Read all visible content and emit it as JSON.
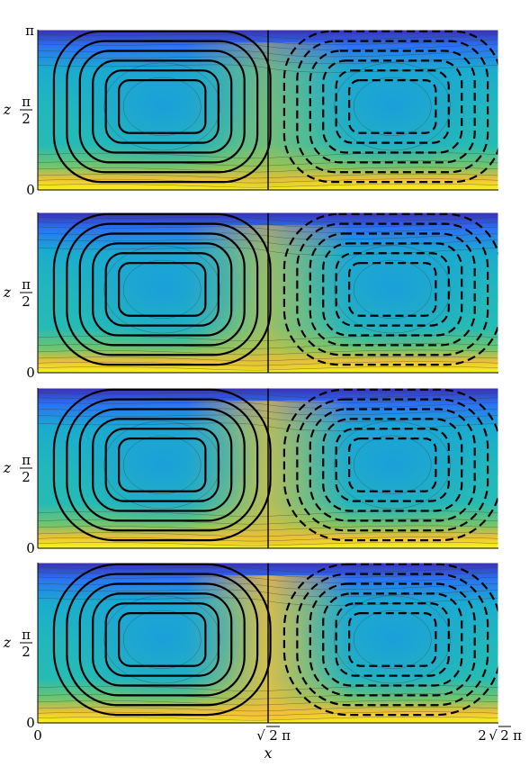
{
  "chart_data": {
    "type": "heatmap",
    "description_free": true,
    "panels": [
      {
        "id": "panel-1",
        "zlabel": "z",
        "z_ticks": [
          "0",
          "π/2",
          "π"
        ],
        "show_top_tick": true,
        "flow_strength": 0.55,
        "warm_center": 0.55
      },
      {
        "id": "panel-2",
        "zlabel": "z",
        "z_ticks": [
          "0",
          "π/2"
        ],
        "show_top_tick": false,
        "flow_strength": 0.75,
        "warm_center": 0.75
      },
      {
        "id": "panel-3",
        "zlabel": "z",
        "z_ticks": [
          "0",
          "π/2"
        ],
        "show_top_tick": false,
        "flow_strength": 0.9,
        "warm_center": 0.88
      },
      {
        "id": "panel-4",
        "zlabel": "z",
        "z_ticks": [
          "0",
          "π/2"
        ],
        "show_top_tick": false,
        "flow_strength": 1.0,
        "warm_center": 1.0
      }
    ],
    "x_ticks": [
      "0",
      "√2π",
      "2√2π"
    ],
    "xlabel": "x",
    "x_range": [
      0,
      8.8858
    ],
    "z_range": [
      0,
      3.14159
    ],
    "colormap": [
      "#3e26a8",
      "#2c6df6",
      "#16a7d8",
      "#2ec6a2",
      "#b6c333",
      "#f9bf38",
      "#f9f914"
    ],
    "streamline_color": "#000000",
    "negative_streamline_style": "dashed"
  },
  "labels": {
    "xlabel": "x",
    "zlabel": "z",
    "pi": "π",
    "pi_half_num": "π",
    "pi_half_den": "2",
    "zero": "0",
    "x0": "0",
    "x_mid_root": "2",
    "x_mid_pi": "π",
    "x_end_pre": "2",
    "x_end_root": "2",
    "x_end_pi": "π"
  }
}
